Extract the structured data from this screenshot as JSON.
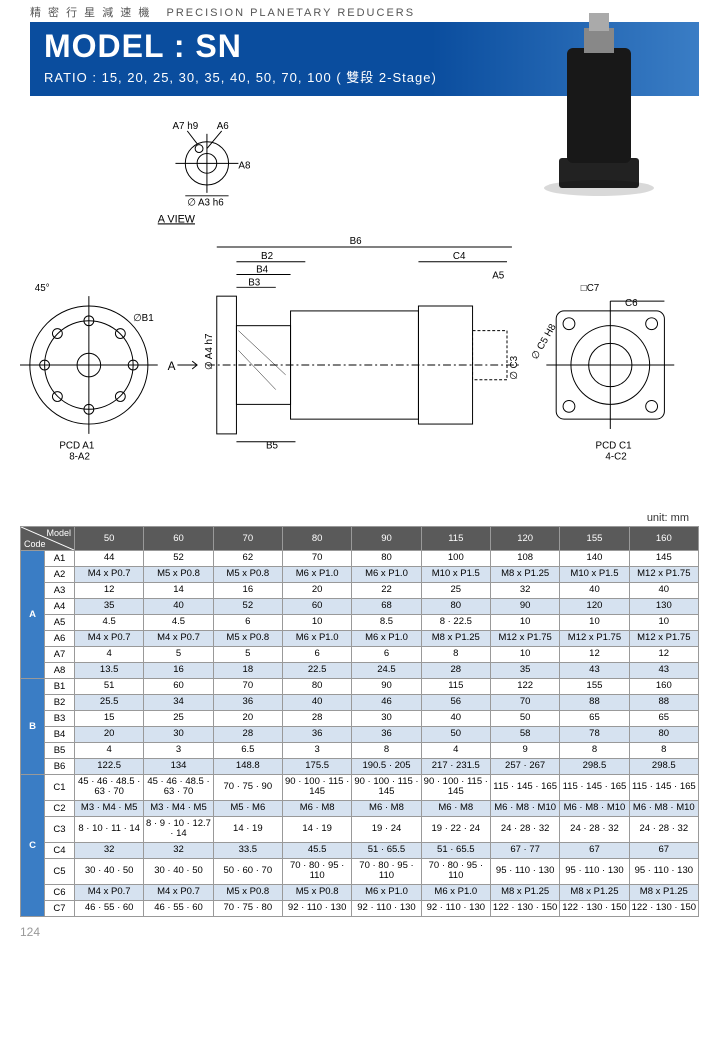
{
  "header": {
    "chinese": "精 密 行 星 減 速 機",
    "english": "PRECISION PLANETARY REDUCERS",
    "model_label": "MODEL : SN",
    "ratio_label": "RATIO : 15, 20, 25, 30, 35, 40, 50, 70, 100 ( 雙段 2-Stage)"
  },
  "diagram": {
    "a_view_label": "A VIEW",
    "labels": [
      "A7 h9",
      "A6",
      "A8",
      "∅ A3 h6",
      "45°",
      "∅B1",
      "A",
      "PCD A1",
      "8-A2",
      "∅ A4 h7",
      "B2",
      "B3",
      "B4",
      "B5",
      "B6",
      "C4",
      "A5",
      "∅ C3",
      "∅ C5 H8",
      "□C7",
      "C6",
      "PCD C1",
      "4-C2"
    ]
  },
  "table": {
    "unit": "unit: mm",
    "corner_model": "Model",
    "corner_code": "Code",
    "models": [
      "50",
      "60",
      "70",
      "80",
      "90",
      "115",
      "120",
      "155",
      "160"
    ],
    "sections": [
      {
        "label": "A",
        "rows": [
          {
            "code": "A1",
            "shade": false,
            "cells": [
              "44",
              "52",
              "62",
              "70",
              "80",
              "100",
              "108",
              "140",
              "145"
            ]
          },
          {
            "code": "A2",
            "shade": true,
            "cells": [
              "M4 x P0.7",
              "M5 x P0.8",
              "M5 x P0.8",
              "M6 x P1.0",
              "M6 x P1.0",
              "M10 x P1.5",
              "M8 x P1.25",
              "M10 x P1.5",
              "M12 x P1.75"
            ]
          },
          {
            "code": "A3",
            "shade": false,
            "cells": [
              "12",
              "14",
              "16",
              "20",
              "22",
              "25",
              "32",
              "40",
              "40"
            ]
          },
          {
            "code": "A4",
            "shade": true,
            "cells": [
              "35",
              "40",
              "52",
              "60",
              "68",
              "80",
              "90",
              "120",
              "130"
            ]
          },
          {
            "code": "A5",
            "shade": false,
            "cells": [
              "4.5",
              "4.5",
              "6",
              "10",
              "8.5",
              "8 · 22.5",
              "10",
              "10",
              "10"
            ]
          },
          {
            "code": "A6",
            "shade": true,
            "cells": [
              "M4 x P0.7",
              "M4 x P0.7",
              "M5 x P0.8",
              "M6 x P1.0",
              "M6 x P1.0",
              "M8 x P1.25",
              "M12 x P1.75",
              "M12 x P1.75",
              "M12 x P1.75"
            ]
          },
          {
            "code": "A7",
            "shade": false,
            "cells": [
              "4",
              "5",
              "5",
              "6",
              "6",
              "8",
              "10",
              "12",
              "12"
            ]
          },
          {
            "code": "A8",
            "shade": true,
            "cells": [
              "13.5",
              "16",
              "18",
              "22.5",
              "24.5",
              "28",
              "35",
              "43",
              "43"
            ]
          }
        ]
      },
      {
        "label": "B",
        "rows": [
          {
            "code": "B1",
            "shade": false,
            "cells": [
              "51",
              "60",
              "70",
              "80",
              "90",
              "115",
              "122",
              "155",
              "160"
            ]
          },
          {
            "code": "B2",
            "shade": true,
            "cells": [
              "25.5",
              "34",
              "36",
              "40",
              "46",
              "56",
              "70",
              "88",
              "88"
            ]
          },
          {
            "code": "B3",
            "shade": false,
            "cells": [
              "15",
              "25",
              "20",
              "28",
              "30",
              "40",
              "50",
              "65",
              "65"
            ]
          },
          {
            "code": "B4",
            "shade": true,
            "cells": [
              "20",
              "30",
              "28",
              "36",
              "36",
              "50",
              "58",
              "78",
              "80"
            ]
          },
          {
            "code": "B5",
            "shade": false,
            "cells": [
              "4",
              "3",
              "6.5",
              "3",
              "8",
              "4",
              "9",
              "8",
              "8"
            ]
          },
          {
            "code": "B6",
            "shade": true,
            "cells": [
              "122.5",
              "134",
              "148.8",
              "175.5",
              "190.5 · 205",
              "217 · 231.5",
              "257 · 267",
              "298.5",
              "298.5"
            ]
          }
        ]
      },
      {
        "label": "C",
        "rows": [
          {
            "code": "C1",
            "shade": false,
            "cells": [
              "45 · 46 · 48.5 · 63 · 70",
              "45 · 46 · 48.5 · 63 · 70",
              "70 · 75 · 90",
              "90 · 100 · 115 · 145",
              "90 · 100 · 115 · 145",
              "90 · 100 · 115 · 145",
              "115 · 145 · 165",
              "115 · 145 · 165",
              "115 · 145 · 165"
            ]
          },
          {
            "code": "C2",
            "shade": true,
            "cells": [
              "M3 · M4 · M5",
              "M3 · M4 · M5",
              "M5 · M6",
              "M6 · M8",
              "M6 · M8",
              "M6 · M8",
              "M6 · M8 · M10",
              "M6 · M8 · M10",
              "M6 · M8 · M10"
            ]
          },
          {
            "code": "C3",
            "shade": false,
            "cells": [
              "8 · 10 · 11 · 14",
              "8 · 9 · 10 · 12.7 · 14",
              "14 · 19",
              "14 · 19",
              "19 · 24",
              "19 · 22 · 24",
              "24 · 28 · 32",
              "24 · 28 · 32",
              "24 · 28 · 32"
            ]
          },
          {
            "code": "C4",
            "shade": true,
            "cells": [
              "32",
              "32",
              "33.5",
              "45.5",
              "51 · 65.5",
              "51 · 65.5",
              "67 · 77",
              "67",
              "67"
            ]
          },
          {
            "code": "C5",
            "shade": false,
            "cells": [
              "30 · 40 · 50",
              "30 · 40 · 50",
              "50 · 60 · 70",
              "70 · 80 · 95 · 110",
              "70 · 80 · 95 · 110",
              "70 · 80 · 95 · 110",
              "95 · 110 · 130",
              "95 · 110 · 130",
              "95 · 110 · 130"
            ]
          },
          {
            "code": "C6",
            "shade": true,
            "cells": [
              "M4 x P0.7",
              "M4 x P0.7",
              "M5 x P0.8",
              "M5 x P0.8",
              "M6 x P1.0",
              "M6 x P1.0",
              "M8 x P1.25",
              "M8 x P1.25",
              "M8 x P1.25"
            ]
          },
          {
            "code": "C7",
            "shade": false,
            "cells": [
              "46 · 55 · 60",
              "46 · 55 · 60",
              "70 · 75 · 80",
              "92 · 110 · 130",
              "92 · 110 · 130",
              "92 · 110 · 130",
              "122 · 130 · 150",
              "122 · 130 · 150",
              "122 · 130 · 150"
            ]
          }
        ]
      }
    ]
  },
  "page_number": "124",
  "colors": {
    "banner": "#0a4d9e",
    "section": "#3a7dc5",
    "header_row": "#5a5a5a",
    "shade": "#d6e2f0"
  }
}
